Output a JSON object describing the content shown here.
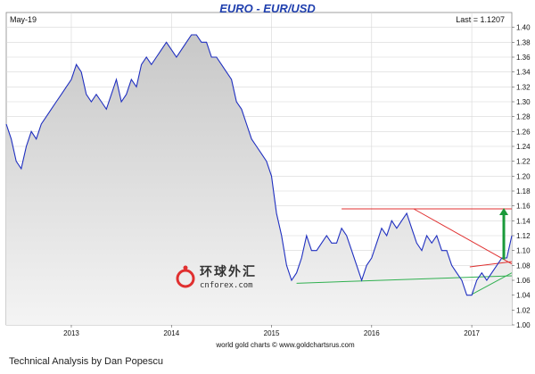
{
  "chart_data": {
    "type": "line",
    "title": "EURO - EUR/USD",
    "date_label": "May-19",
    "last_label": "Last = 1.1207",
    "credit": "world gold charts © www.goldchartsrus.com",
    "x_ticks": [
      "2013",
      "2014",
      "2015",
      "2016",
      "2017"
    ],
    "y_ticks": [
      "1.40",
      "1.38",
      "1.36",
      "1.34",
      "1.32",
      "1.30",
      "1.28",
      "1.26",
      "1.24",
      "1.22",
      "1.20",
      "1.18",
      "1.16",
      "1.14",
      "1.12",
      "1.10",
      "1.08",
      "1.06",
      "1.04",
      "1.02",
      "1.00"
    ],
    "ylim": [
      1.0,
      1.42
    ],
    "xlim": [
      2012.35,
      2017.4
    ],
    "grid": true,
    "colors": {
      "line": "#1f2fc0",
      "fill_top": "#c8c8c8",
      "fill_bottom": "#f4f4f4",
      "resistance": "#e03030",
      "support": "#30b050",
      "arrow": "#1a9a3a",
      "title": "#1f3fae"
    },
    "series": [
      {
        "x": [
          2012.35,
          2012.4,
          2012.45,
          2012.5,
          2012.55,
          2012.6,
          2012.65,
          2012.7,
          2012.75,
          2012.8,
          2012.85,
          2012.9,
          2012.95,
          2013.0,
          2013.05,
          2013.1,
          2013.15,
          2013.2,
          2013.25,
          2013.3,
          2013.35,
          2013.4,
          2013.45,
          2013.5,
          2013.55,
          2013.6,
          2013.65,
          2013.7,
          2013.75,
          2013.8,
          2013.85,
          2013.9,
          2013.95,
          2014.0,
          2014.05,
          2014.1,
          2014.15,
          2014.2,
          2014.25,
          2014.3,
          2014.35,
          2014.4,
          2014.45,
          2014.5,
          2014.55,
          2014.6,
          2014.65,
          2014.7,
          2014.75,
          2014.8,
          2014.85,
          2014.9,
          2014.95,
          2015.0,
          2015.05,
          2015.1,
          2015.15,
          2015.2,
          2015.25,
          2015.3,
          2015.35,
          2015.4,
          2015.45,
          2015.5,
          2015.55,
          2015.6,
          2015.65,
          2015.7,
          2015.75,
          2015.8,
          2015.85,
          2015.9,
          2015.95,
          2016.0,
          2016.05,
          2016.1,
          2016.15,
          2016.2,
          2016.25,
          2016.3,
          2016.35,
          2016.4,
          2016.45,
          2016.5,
          2016.55,
          2016.6,
          2016.65,
          2016.7,
          2016.75,
          2016.8,
          2016.85,
          2016.9,
          2016.95,
          2017.0,
          2017.05,
          2017.1,
          2017.15,
          2017.2,
          2017.25,
          2017.3,
          2017.35,
          2017.4
        ],
        "y": [
          1.27,
          1.25,
          1.22,
          1.21,
          1.24,
          1.26,
          1.25,
          1.27,
          1.28,
          1.29,
          1.3,
          1.31,
          1.32,
          1.33,
          1.35,
          1.34,
          1.31,
          1.3,
          1.31,
          1.3,
          1.29,
          1.31,
          1.33,
          1.3,
          1.31,
          1.33,
          1.32,
          1.35,
          1.36,
          1.35,
          1.36,
          1.37,
          1.38,
          1.37,
          1.36,
          1.37,
          1.38,
          1.39,
          1.39,
          1.38,
          1.38,
          1.36,
          1.36,
          1.35,
          1.34,
          1.33,
          1.3,
          1.29,
          1.27,
          1.25,
          1.24,
          1.23,
          1.22,
          1.2,
          1.15,
          1.12,
          1.08,
          1.06,
          1.07,
          1.09,
          1.12,
          1.1,
          1.1,
          1.11,
          1.12,
          1.11,
          1.11,
          1.13,
          1.12,
          1.1,
          1.08,
          1.06,
          1.08,
          1.09,
          1.11,
          1.13,
          1.12,
          1.14,
          1.13,
          1.14,
          1.15,
          1.13,
          1.11,
          1.1,
          1.12,
          1.11,
          1.12,
          1.1,
          1.1,
          1.08,
          1.07,
          1.06,
          1.04,
          1.04,
          1.06,
          1.07,
          1.06,
          1.07,
          1.08,
          1.09,
          1.09,
          1.12
        ]
      }
    ],
    "annotations": {
      "resistance_top": {
        "x": [
          2015.7,
          2017.4
        ],
        "y": [
          1.156,
          1.156
        ]
      },
      "resistance_diagonal": {
        "x": [
          2016.42,
          2017.4
        ],
        "y": [
          1.156,
          1.082
        ]
      },
      "support_lower": {
        "x": [
          2015.25,
          2017.4
        ],
        "y": [
          1.056,
          1.066
        ]
      },
      "flag_resistance": {
        "x": [
          2016.98,
          2017.4
        ],
        "y": [
          1.078,
          1.085
        ]
      },
      "flag_support": {
        "x": [
          2017.0,
          2017.4
        ],
        "y": [
          1.041,
          1.07
        ]
      },
      "target_arrow": {
        "x": 2017.32,
        "y_from": 1.088,
        "y_to": 1.156
      }
    }
  },
  "watermark": {
    "chinese": "环球外汇",
    "domain": "cnforex.com"
  },
  "caption": "Technical Analysis by Dan Popescu"
}
